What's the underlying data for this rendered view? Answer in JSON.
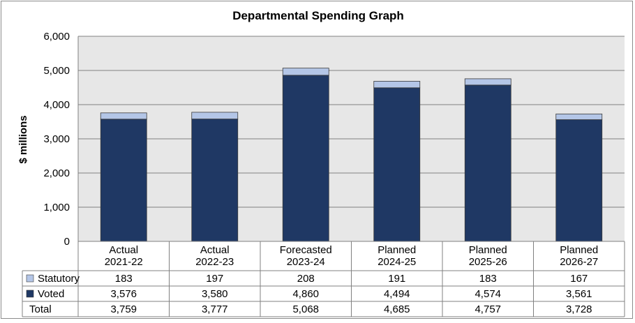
{
  "chart_data": {
    "type": "bar",
    "stacked": true,
    "title": "Departmental Spending Graph",
    "ylabel": "$ millions",
    "ylim": [
      0,
      6000
    ],
    "yticks": [
      "0",
      "1,000",
      "2,000",
      "3,000",
      "4,000",
      "5,000",
      "6,000"
    ],
    "grid": true,
    "categories": [
      [
        "Actual",
        "2021-22"
      ],
      [
        "Actual",
        "2022-23"
      ],
      [
        "Forecasted",
        "2023-24"
      ],
      [
        "Planned",
        "2024-25"
      ],
      [
        "Planned",
        "2025-26"
      ],
      [
        "Planned",
        "2026-27"
      ]
    ],
    "series": [
      {
        "name": "Statutory",
        "color": "#b4c6e7",
        "values": [
          183,
          197,
          208,
          191,
          183,
          167
        ],
        "labels": [
          "183",
          "197",
          "208",
          "191",
          "183",
          "167"
        ]
      },
      {
        "name": "Voted",
        "color": "#1f3864",
        "values": [
          3576,
          3580,
          4860,
          4494,
          4574,
          3561
        ],
        "labels": [
          "3,576",
          "3,580",
          "4,860",
          "4,494",
          "4,574",
          "3,561"
        ]
      }
    ],
    "total": {
      "name": "Total",
      "labels": [
        "3,759",
        "3,777",
        "5,068",
        "4,685",
        "4,757",
        "3,728"
      ]
    }
  }
}
